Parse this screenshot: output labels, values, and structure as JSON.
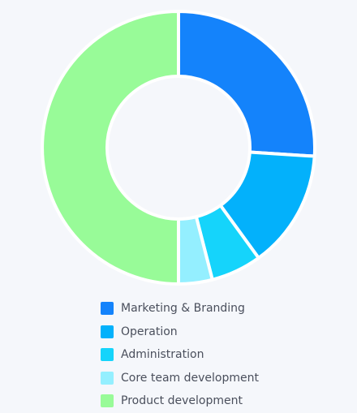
{
  "chart_data": {
    "type": "pie",
    "variant": "donut",
    "title": "",
    "categories": [
      "Marketing & Branding",
      "Operation",
      "Administration",
      "Core team development",
      "Product development"
    ],
    "values": [
      26,
      14,
      6,
      4,
      50
    ],
    "unit": "%",
    "colors": [
      "#1483fb",
      "#03b1fb",
      "#15d4fb",
      "#94efff",
      "#98fb98"
    ],
    "legend_position": "bottom",
    "grid": false
  }
}
